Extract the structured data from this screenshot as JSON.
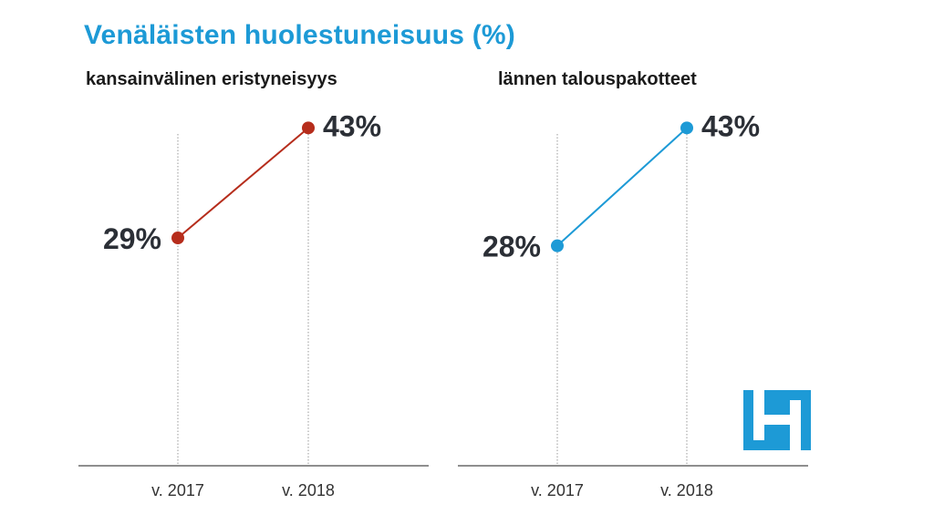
{
  "title": "Venäläisten huolestuneisuus (%)",
  "colors": {
    "title": "#1d9ad6",
    "series1": "#b62d1c",
    "series2": "#1d9ad6",
    "logo": "#1d9ad6"
  },
  "logo_icon": "hs-logo-icon",
  "chart_data": [
    {
      "type": "line",
      "title": "kansainvälinen eristyneisyys",
      "categories": [
        "v. 2017",
        "v. 2018"
      ],
      "series": [
        {
          "values": [
            29,
            43
          ]
        }
      ],
      "data_labels": [
        "29%",
        "43%"
      ],
      "ylim": [
        0,
        50
      ],
      "grid": "vertical"
    },
    {
      "type": "line",
      "title": "lännen talouspakotteet",
      "categories": [
        "v. 2017",
        "v. 2018"
      ],
      "series": [
        {
          "values": [
            28,
            43
          ]
        }
      ],
      "data_labels": [
        "28%",
        "43%"
      ],
      "ylim": [
        0,
        50
      ],
      "grid": "vertical"
    }
  ]
}
